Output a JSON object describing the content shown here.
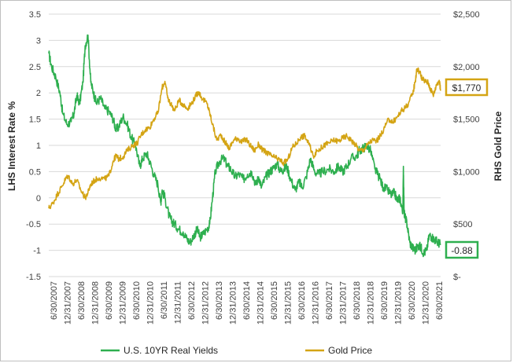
{
  "chart_data": {
    "type": "line",
    "title": "",
    "y_left_label": "LHS Interest Rate %",
    "y_right_label": "RHS Gold Price",
    "y_left_ticks": [
      "3.5",
      "3",
      "2.5",
      "2",
      "1.5",
      "1",
      "0.5",
      "0",
      "-0.5",
      "-1",
      "-1.5"
    ],
    "y_left_range": [
      -1.5,
      3.5
    ],
    "y_right_ticks": [
      "$2,500",
      "$2,000",
      "$1,500",
      "$1,000",
      "$500",
      "$-"
    ],
    "y_right_range": [
      0,
      2500
    ],
    "x_ticks": [
      "6/30/2007",
      "12/31/2007",
      "6/30/2008",
      "12/31/2008",
      "6/30/2009",
      "12/31/2009",
      "6/30/2010",
      "12/31/2010",
      "6/30/2011",
      "12/31/2011",
      "6/30/2012",
      "12/31/2012",
      "6/30/2013",
      "12/31/2013",
      "6/30/2014",
      "12/31/2014",
      "6/30/2015",
      "12/31/2015",
      "6/30/2016",
      "12/31/2016",
      "6/30/2017",
      "12/31/2017",
      "6/30/2018",
      "12/31/2018",
      "6/30/2019",
      "12/31/2019",
      "6/30/2020",
      "12/31/2020",
      "6/30/2021"
    ],
    "x_range": [
      2007.5,
      2021.5
    ],
    "grid": true,
    "legend_position": "bottom",
    "series": [
      {
        "name": "U.S. 10YR Real Yields",
        "axis": "left",
        "color": "#2eaf4f",
        "x": [
          2007.5,
          2007.6,
          2007.75,
          2007.9,
          2008.0,
          2008.15,
          2008.3,
          2008.4,
          2008.5,
          2008.6,
          2008.72,
          2008.8,
          2008.9,
          2009.0,
          2009.1,
          2009.2,
          2009.35,
          2009.5,
          2009.65,
          2009.8,
          2009.9,
          2010.0,
          2010.15,
          2010.3,
          2010.45,
          2010.6,
          2010.75,
          2010.85,
          2011.0,
          2011.1,
          2011.25,
          2011.4,
          2011.5,
          2011.55,
          2011.65,
          2011.8,
          2011.9,
          2012.0,
          2012.15,
          2012.3,
          2012.45,
          2012.55,
          2012.7,
          2012.8,
          2012.9,
          2013.0,
          2013.15,
          2013.25,
          2013.35,
          2013.45,
          2013.6,
          2013.75,
          2013.9,
          2014.0,
          2014.15,
          2014.3,
          2014.45,
          2014.6,
          2014.75,
          2014.9,
          2015.0,
          2015.1,
          2015.25,
          2015.4,
          2015.5,
          2015.65,
          2015.8,
          2015.9,
          2016.0,
          2016.15,
          2016.3,
          2016.45,
          2016.55,
          2016.7,
          2016.85,
          2017.0,
          2017.15,
          2017.3,
          2017.5,
          2017.7,
          2017.85,
          2018.0,
          2018.15,
          2018.3,
          2018.5,
          2018.6,
          2018.75,
          2018.85,
          2019.0,
          2019.15,
          2019.3,
          2019.45,
          2019.6,
          2019.75,
          2019.85,
          2019.95,
          2020.05,
          2020.15,
          2020.17,
          2020.2,
          2020.25,
          2020.3,
          2020.4,
          2020.5,
          2020.6,
          2020.7,
          2020.8,
          2020.9,
          2021.0,
          2021.1,
          2021.2,
          2021.3,
          2021.4,
          2021.5
        ],
        "values": [
          2.75,
          2.5,
          2.3,
          2.0,
          1.6,
          1.4,
          1.45,
          1.6,
          1.95,
          1.8,
          2.2,
          2.9,
          3.1,
          2.2,
          2.0,
          1.8,
          1.9,
          1.7,
          1.65,
          1.5,
          1.3,
          1.35,
          1.55,
          1.4,
          1.15,
          1.0,
          0.6,
          0.75,
          0.85,
          0.7,
          0.45,
          0.25,
          -0.1,
          0.15,
          0.0,
          -0.35,
          -0.45,
          -0.5,
          -0.6,
          -0.65,
          -0.8,
          -0.85,
          -0.7,
          -0.6,
          -0.75,
          -0.7,
          -0.6,
          -0.5,
          0.0,
          0.5,
          0.7,
          0.75,
          0.6,
          0.55,
          0.4,
          0.45,
          0.35,
          0.45,
          0.5,
          0.25,
          0.4,
          0.2,
          0.4,
          0.5,
          0.55,
          0.65,
          0.5,
          0.55,
          0.6,
          0.35,
          0.15,
          0.3,
          0.2,
          0.4,
          0.75,
          0.5,
          0.45,
          0.5,
          0.55,
          0.5,
          0.6,
          0.5,
          0.6,
          0.75,
          0.8,
          0.9,
          0.95,
          1.0,
          0.9,
          0.55,
          0.4,
          0.2,
          0.15,
          0.05,
          0.1,
          -0.05,
          0.0,
          -0.3,
          0.6,
          -0.3,
          -0.4,
          -0.5,
          -0.85,
          -0.95,
          -1.0,
          -0.9,
          -0.95,
          -1.05,
          -1.0,
          -0.7,
          -0.75,
          -0.8,
          -0.85,
          -0.88
        ]
      },
      {
        "name": "Gold Price",
        "axis": "right",
        "color": "#d4a414",
        "x": [
          2007.5,
          2007.65,
          2007.8,
          2007.95,
          2008.1,
          2008.2,
          2008.35,
          2008.5,
          2008.65,
          2008.8,
          2008.9,
          2009.0,
          2009.15,
          2009.3,
          2009.5,
          2009.65,
          2009.8,
          2009.9,
          2010.0,
          2010.15,
          2010.3,
          2010.5,
          2010.65,
          2010.8,
          2010.95,
          2011.1,
          2011.25,
          2011.4,
          2011.55,
          2011.65,
          2011.75,
          2011.85,
          2012.0,
          2012.15,
          2012.3,
          2012.45,
          2012.6,
          2012.75,
          2012.85,
          2013.0,
          2013.15,
          2013.25,
          2013.35,
          2013.5,
          2013.65,
          2013.8,
          2013.95,
          2014.1,
          2014.25,
          2014.4,
          2014.55,
          2014.7,
          2014.85,
          2015.0,
          2015.15,
          2015.3,
          2015.45,
          2015.6,
          2015.75,
          2015.9,
          2016.05,
          2016.2,
          2016.35,
          2016.5,
          2016.65,
          2016.8,
          2016.95,
          2017.1,
          2017.25,
          2017.4,
          2017.55,
          2017.7,
          2017.85,
          2018.0,
          2018.15,
          2018.3,
          2018.45,
          2018.6,
          2018.75,
          2018.9,
          2019.05,
          2019.2,
          2019.35,
          2019.5,
          2019.65,
          2019.8,
          2019.95,
          2020.1,
          2020.2,
          2020.35,
          2020.5,
          2020.6,
          2020.65,
          2020.75,
          2020.85,
          2020.95,
          2021.05,
          2021.15,
          2021.25,
          2021.35,
          2021.45,
          2021.5
        ],
        "values": [
          650,
          700,
          780,
          850,
          930,
          960,
          880,
          920,
          820,
          750,
          800,
          880,
          920,
          940,
          930,
          960,
          1100,
          1150,
          1120,
          1140,
          1200,
          1250,
          1270,
          1350,
          1400,
          1420,
          1500,
          1560,
          1800,
          1860,
          1700,
          1650,
          1580,
          1680,
          1640,
          1600,
          1650,
          1720,
          1760,
          1690,
          1650,
          1560,
          1450,
          1300,
          1350,
          1280,
          1220,
          1300,
          1320,
          1280,
          1310,
          1250,
          1200,
          1260,
          1200,
          1180,
          1150,
          1130,
          1110,
          1080,
          1120,
          1230,
          1270,
          1330,
          1340,
          1260,
          1150,
          1200,
          1230,
          1260,
          1280,
          1300,
          1290,
          1320,
          1340,
          1300,
          1260,
          1200,
          1210,
          1260,
          1300,
          1290,
          1340,
          1420,
          1500,
          1470,
          1520,
          1580,
          1600,
          1650,
          1740,
          1870,
          1980,
          1950,
          1880,
          1860,
          1850,
          1780,
          1730,
          1830,
          1870,
          1770
        ]
      }
    ]
  },
  "callouts": {
    "gold_last": "$1,770",
    "yield_last": "-0.88"
  },
  "legend": [
    {
      "label": "U.S. 10YR Real Yields",
      "color": "#2eaf4f"
    },
    {
      "label": "Gold Price",
      "color": "#d4a414"
    }
  ]
}
